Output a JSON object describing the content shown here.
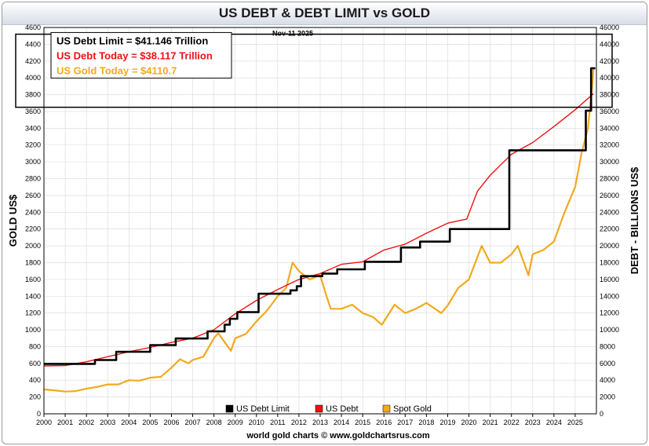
{
  "chart_data": {
    "type": "line",
    "title": "US DEBT & DEBT LIMIT vs GOLD",
    "date_label": "Nov-11  2025",
    "ylabel_left": "GOLD US$",
    "ylabel_right": "DEBT - BILLIONS US$",
    "ylim_left": [
      0,
      4600
    ],
    "ylim_right": [
      0,
      46000
    ],
    "yticks_left": [
      0,
      200,
      400,
      600,
      800,
      1000,
      1200,
      1400,
      1600,
      1800,
      2000,
      2200,
      2400,
      2600,
      2800,
      3000,
      3200,
      3400,
      3600,
      3800,
      4000,
      4200,
      4400,
      4600
    ],
    "yticks_right": [
      0,
      2000,
      4000,
      6000,
      8000,
      10000,
      12000,
      14000,
      16000,
      18000,
      20000,
      22000,
      24000,
      26000,
      28000,
      30000,
      32000,
      34000,
      36000,
      38000,
      40000,
      42000,
      44000,
      46000
    ],
    "xlim": [
      2000,
      2026
    ],
    "xticks": [
      "2000",
      "2001",
      "2002",
      "2003",
      "2004",
      "2005",
      "2006",
      "2007",
      "2008",
      "2009",
      "2010",
      "2011",
      "2012",
      "2013",
      "2014",
      "2015",
      "2016",
      "2017",
      "2018",
      "2019",
      "2020",
      "2021",
      "2022",
      "2023",
      "2024",
      "2025"
    ],
    "info_box": [
      {
        "label": "US Debt Limit     = $41.146 Trillion",
        "color": "#000000"
      },
      {
        "label": "US Debt Today = $38.117 Trillion",
        "color": "#ee1111"
      },
      {
        "label": "US Gold Today = $4110.7",
        "color": "#f2a91e"
      }
    ],
    "legend": [
      "US Debt Limit",
      "US Debt",
      "Spot Gold"
    ],
    "source": "world gold charts © www.goldchartsrus.com",
    "series": [
      {
        "name": "US Debt Limit",
        "axis": "right",
        "color": "#000000",
        "step": true,
        "x": [
          2000,
          2002.4,
          2003.4,
          2005.0,
          2006.2,
          2007.7,
          2008.5,
          2008.75,
          2009.1,
          2010.1,
          2011.6,
          2011.9,
          2012.1,
          2013.1,
          2013.8,
          2015.1,
          2016.8,
          2017.7,
          2019.1,
          2021.9,
          2023.5,
          2025.5,
          2025.75
        ],
        "y": [
          5950,
          6400,
          7384,
          8184,
          8965,
          9815,
          10615,
          11315,
          12104,
          14294,
          14694,
          15194,
          16394,
          16700,
          17200,
          18100,
          19800,
          20500,
          22000,
          31381,
          31381,
          36100,
          41146
        ]
      },
      {
        "name": "US Debt",
        "axis": "right",
        "color": "#ee1111",
        "step": false,
        "x": [
          2000,
          2001,
          2002,
          2003,
          2004,
          2005,
          2006,
          2007,
          2008,
          2009,
          2010,
          2011,
          2012,
          2013,
          2014,
          2015,
          2016,
          2017,
          2018,
          2019,
          2019.9,
          2020.4,
          2021,
          2022,
          2023,
          2024,
          2025,
          2025.86
        ],
        "y": [
          5700,
          5750,
          6200,
          6800,
          7400,
          7900,
          8500,
          9000,
          10000,
          11900,
          13500,
          14800,
          16000,
          16700,
          17800,
          18100,
          19500,
          20200,
          21500,
          22700,
          23200,
          26500,
          28400,
          30900,
          32300,
          34200,
          36200,
          38117
        ]
      },
      {
        "name": "Spot Gold",
        "axis": "left",
        "color": "#f2a91e",
        "step": false,
        "x": [
          2000,
          2000.5,
          2001,
          2001.5,
          2002,
          2002.5,
          2003,
          2003.5,
          2004,
          2004.5,
          2005,
          2005.5,
          2006,
          2006.4,
          2006.8,
          2007,
          2007.5,
          2008,
          2008.2,
          2008.8,
          2009,
          2009.5,
          2010,
          2010.5,
          2011,
          2011.4,
          2011.7,
          2012,
          2012.5,
          2013,
          2013.3,
          2013.5,
          2014,
          2014.5,
          2015,
          2015.5,
          2015.9,
          2016.5,
          2017,
          2017.5,
          2018,
          2018.7,
          2019,
          2019.5,
          2020,
          2020.6,
          2021,
          2021.5,
          2022,
          2022.3,
          2022.8,
          2023,
          2023.5,
          2024,
          2024.5,
          2025,
          2025.3,
          2025.6,
          2025.8,
          2025.86
        ],
        "y": [
          290,
          280,
          265,
          270,
          300,
          320,
          350,
          350,
          400,
          395,
          430,
          440,
          550,
          650,
          600,
          640,
          680,
          900,
          960,
          750,
          900,
          950,
          1100,
          1230,
          1400,
          1500,
          1800,
          1700,
          1600,
          1650,
          1400,
          1250,
          1250,
          1300,
          1200,
          1150,
          1060,
          1300,
          1200,
          1250,
          1320,
          1200,
          1290,
          1500,
          1600,
          2000,
          1800,
          1800,
          1900,
          2000,
          1650,
          1900,
          1950,
          2050,
          2400,
          2700,
          3100,
          3400,
          3900,
          4110.7
        ]
      }
    ]
  }
}
